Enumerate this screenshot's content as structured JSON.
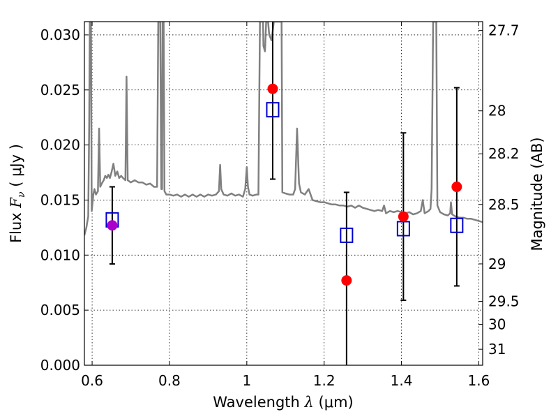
{
  "chart_data": {
    "type": "scatter",
    "xlabel": "Wavelength",
    "xlabel_symbol": "λ",
    "xlabel_unit": "(μm)",
    "ylabel": "Flux",
    "ylabel_symbol": "F",
    "ylabel_subscript": "ν",
    "ylabel_unit": "( μJy )",
    "y2label": "Magnitude (AB)",
    "xlim": [
      0.58,
      1.61
    ],
    "ylim": [
      0.0,
      0.0312
    ],
    "grid": true,
    "x_ticks": [
      {
        "value": 0.6,
        "label": "0.6"
      },
      {
        "value": 0.8,
        "label": "0.8"
      },
      {
        "value": 1.0,
        "label": "1"
      },
      {
        "value": 1.2,
        "label": "1.2"
      },
      {
        "value": 1.4,
        "label": "1.4"
      },
      {
        "value": 1.6,
        "label": "1.6"
      }
    ],
    "y_ticks": [
      {
        "value": 0.0,
        "label": "0.000"
      },
      {
        "value": 0.005,
        "label": "0.005"
      },
      {
        "value": 0.01,
        "label": "0.010"
      },
      {
        "value": 0.015,
        "label": "0.015"
      },
      {
        "value": 0.02,
        "label": "0.020"
      },
      {
        "value": 0.025,
        "label": "0.025"
      },
      {
        "value": 0.03,
        "label": "0.030"
      }
    ],
    "y2_ticks": [
      {
        "flux": 0.0304,
        "label": "27.7"
      },
      {
        "flux": 0.0231,
        "label": "28"
      },
      {
        "flux": 0.0192,
        "label": "28.2"
      },
      {
        "flux": 0.0146,
        "label": "28.5"
      },
      {
        "flux": 0.0092,
        "label": "29"
      },
      {
        "flux": 0.0058,
        "label": "29.5"
      },
      {
        "flux": 0.0037,
        "label": "30"
      },
      {
        "flux": 0.00145,
        "label": "31"
      }
    ],
    "series": [
      {
        "name": "model spectrum",
        "kind": "line",
        "color": "#808080",
        "points": [
          [
            0.58,
            0.0118
          ],
          [
            0.585,
            0.0125
          ],
          [
            0.59,
            0.0135
          ],
          [
            0.5925,
            0.022
          ],
          [
            0.594,
            0.0312
          ],
          [
            0.597,
            0.0312
          ],
          [
            0.599,
            0.014
          ],
          [
            0.603,
            0.0155
          ],
          [
            0.606,
            0.016
          ],
          [
            0.61,
            0.0155
          ],
          [
            0.615,
            0.0158
          ],
          [
            0.618,
            0.0215
          ],
          [
            0.621,
            0.0162
          ],
          [
            0.625,
            0.0165
          ],
          [
            0.63,
            0.0168
          ],
          [
            0.634,
            0.0172
          ],
          [
            0.638,
            0.017
          ],
          [
            0.642,
            0.0173
          ],
          [
            0.646,
            0.017
          ],
          [
            0.65,
            0.0175
          ],
          [
            0.655,
            0.0183
          ],
          [
            0.66,
            0.0172
          ],
          [
            0.665,
            0.0176
          ],
          [
            0.67,
            0.017
          ],
          [
            0.675,
            0.0172
          ],
          [
            0.68,
            0.017
          ],
          [
            0.686,
            0.0168
          ],
          [
            0.689,
            0.0262
          ],
          [
            0.692,
            0.0168
          ],
          [
            0.7,
            0.0166
          ],
          [
            0.71,
            0.0168
          ],
          [
            0.72,
            0.0166
          ],
          [
            0.73,
            0.0166
          ],
          [
            0.74,
            0.0164
          ],
          [
            0.75,
            0.0165
          ],
          [
            0.76,
            0.0162
          ],
          [
            0.768,
            0.0162
          ],
          [
            0.771,
            0.0312
          ],
          [
            0.776,
            0.0312
          ],
          [
            0.779,
            0.016
          ],
          [
            0.781,
            0.016
          ],
          [
            0.782,
            0.0312
          ],
          [
            0.785,
            0.0312
          ],
          [
            0.787,
            0.0158
          ],
          [
            0.792,
            0.0155
          ],
          [
            0.8,
            0.0155
          ],
          [
            0.81,
            0.0154
          ],
          [
            0.82,
            0.0155
          ],
          [
            0.83,
            0.0153
          ],
          [
            0.84,
            0.0155
          ],
          [
            0.85,
            0.0153
          ],
          [
            0.86,
            0.0155
          ],
          [
            0.87,
            0.0153
          ],
          [
            0.88,
            0.0155
          ],
          [
            0.89,
            0.0153
          ],
          [
            0.9,
            0.0155
          ],
          [
            0.91,
            0.0154
          ],
          [
            0.92,
            0.0155
          ],
          [
            0.928,
            0.0158
          ],
          [
            0.931,
            0.0182
          ],
          [
            0.934,
            0.016
          ],
          [
            0.94,
            0.0155
          ],
          [
            0.95,
            0.0154
          ],
          [
            0.96,
            0.0156
          ],
          [
            0.97,
            0.0154
          ],
          [
            0.98,
            0.0155
          ],
          [
            0.99,
            0.0153
          ],
          [
            0.996,
            0.016
          ],
          [
            1.0,
            0.018
          ],
          [
            1.003,
            0.0162
          ],
          [
            1.007,
            0.0155
          ],
          [
            1.015,
            0.0154
          ],
          [
            1.025,
            0.0155
          ],
          [
            1.03,
            0.0155
          ],
          [
            1.034,
            0.0312
          ],
          [
            1.042,
            0.0312
          ],
          [
            1.043,
            0.029
          ],
          [
            1.047,
            0.0285
          ],
          [
            1.05,
            0.0312
          ],
          [
            1.055,
            0.0312
          ],
          [
            1.058,
            0.03
          ],
          [
            1.064,
            0.0295
          ],
          [
            1.07,
            0.0312
          ],
          [
            1.09,
            0.0312
          ],
          [
            1.092,
            0.0157
          ],
          [
            1.1,
            0.0156
          ],
          [
            1.11,
            0.0155
          ],
          [
            1.12,
            0.0155
          ],
          [
            1.125,
            0.016
          ],
          [
            1.13,
            0.0215
          ],
          [
            1.135,
            0.0165
          ],
          [
            1.14,
            0.0157
          ],
          [
            1.15,
            0.0155
          ],
          [
            1.16,
            0.016
          ],
          [
            1.165,
            0.0155
          ],
          [
            1.17,
            0.015
          ],
          [
            1.18,
            0.0149
          ],
          [
            1.19,
            0.0148
          ],
          [
            1.2,
            0.0148
          ],
          [
            1.21,
            0.0147
          ],
          [
            1.22,
            0.0146
          ],
          [
            1.23,
            0.0146
          ],
          [
            1.24,
            0.0145
          ],
          [
            1.25,
            0.0145
          ],
          [
            1.26,
            0.0144
          ],
          [
            1.27,
            0.0145
          ],
          [
            1.28,
            0.0143
          ],
          [
            1.29,
            0.0145
          ],
          [
            1.3,
            0.0143
          ],
          [
            1.31,
            0.0142
          ],
          [
            1.32,
            0.0141
          ],
          [
            1.33,
            0.014
          ],
          [
            1.34,
            0.0141
          ],
          [
            1.35,
            0.014
          ],
          [
            1.355,
            0.0145
          ],
          [
            1.36,
            0.0138
          ],
          [
            1.37,
            0.014
          ],
          [
            1.38,
            0.0139
          ],
          [
            1.39,
            0.014
          ],
          [
            1.4,
            0.0139
          ],
          [
            1.41,
            0.0138
          ],
          [
            1.42,
            0.0139
          ],
          [
            1.43,
            0.0137
          ],
          [
            1.44,
            0.0138
          ],
          [
            1.45,
            0.014
          ],
          [
            1.455,
            0.015
          ],
          [
            1.46,
            0.0138
          ],
          [
            1.47,
            0.014
          ],
          [
            1.475,
            0.0142
          ],
          [
            1.478,
            0.016
          ],
          [
            1.482,
            0.0312
          ],
          [
            1.49,
            0.0312
          ],
          [
            1.493,
            0.0145
          ],
          [
            1.5,
            0.0139
          ],
          [
            1.51,
            0.0137
          ],
          [
            1.52,
            0.0136
          ],
          [
            1.526,
            0.0138
          ],
          [
            1.528,
            0.0148
          ],
          [
            1.531,
            0.0137
          ],
          [
            1.54,
            0.0135
          ],
          [
            1.55,
            0.0134
          ],
          [
            1.56,
            0.0134
          ],
          [
            1.57,
            0.0133
          ],
          [
            1.58,
            0.0133
          ],
          [
            1.59,
            0.0132
          ],
          [
            1.6,
            0.0131
          ],
          [
            1.61,
            0.013
          ]
        ]
      },
      {
        "name": "model photometry",
        "kind": "open-square",
        "color": "#0000cc",
        "points": [
          [
            0.652,
            0.0132
          ],
          [
            1.067,
            0.0232
          ],
          [
            1.258,
            0.0118
          ],
          [
            1.405,
            0.0124
          ],
          [
            1.543,
            0.0127
          ]
        ]
      },
      {
        "name": "observed photometry",
        "kind": "filled-circle",
        "color": "#ff0000",
        "points": [
          {
            "x": 0.652,
            "y": 0.0127,
            "err": 0.0035,
            "color": "#aa00cc"
          },
          {
            "x": 1.067,
            "y": 0.0251,
            "err": 0.0082,
            "color": "#ff0000"
          },
          {
            "x": 1.258,
            "y": 0.0077,
            "err": 0.008,
            "color": "#ff0000"
          },
          {
            "x": 1.405,
            "y": 0.0135,
            "err": 0.0076,
            "color": "#ff0000"
          },
          {
            "x": 1.543,
            "y": 0.0162,
            "err": 0.009,
            "color": "#ff0000"
          }
        ]
      }
    ]
  }
}
